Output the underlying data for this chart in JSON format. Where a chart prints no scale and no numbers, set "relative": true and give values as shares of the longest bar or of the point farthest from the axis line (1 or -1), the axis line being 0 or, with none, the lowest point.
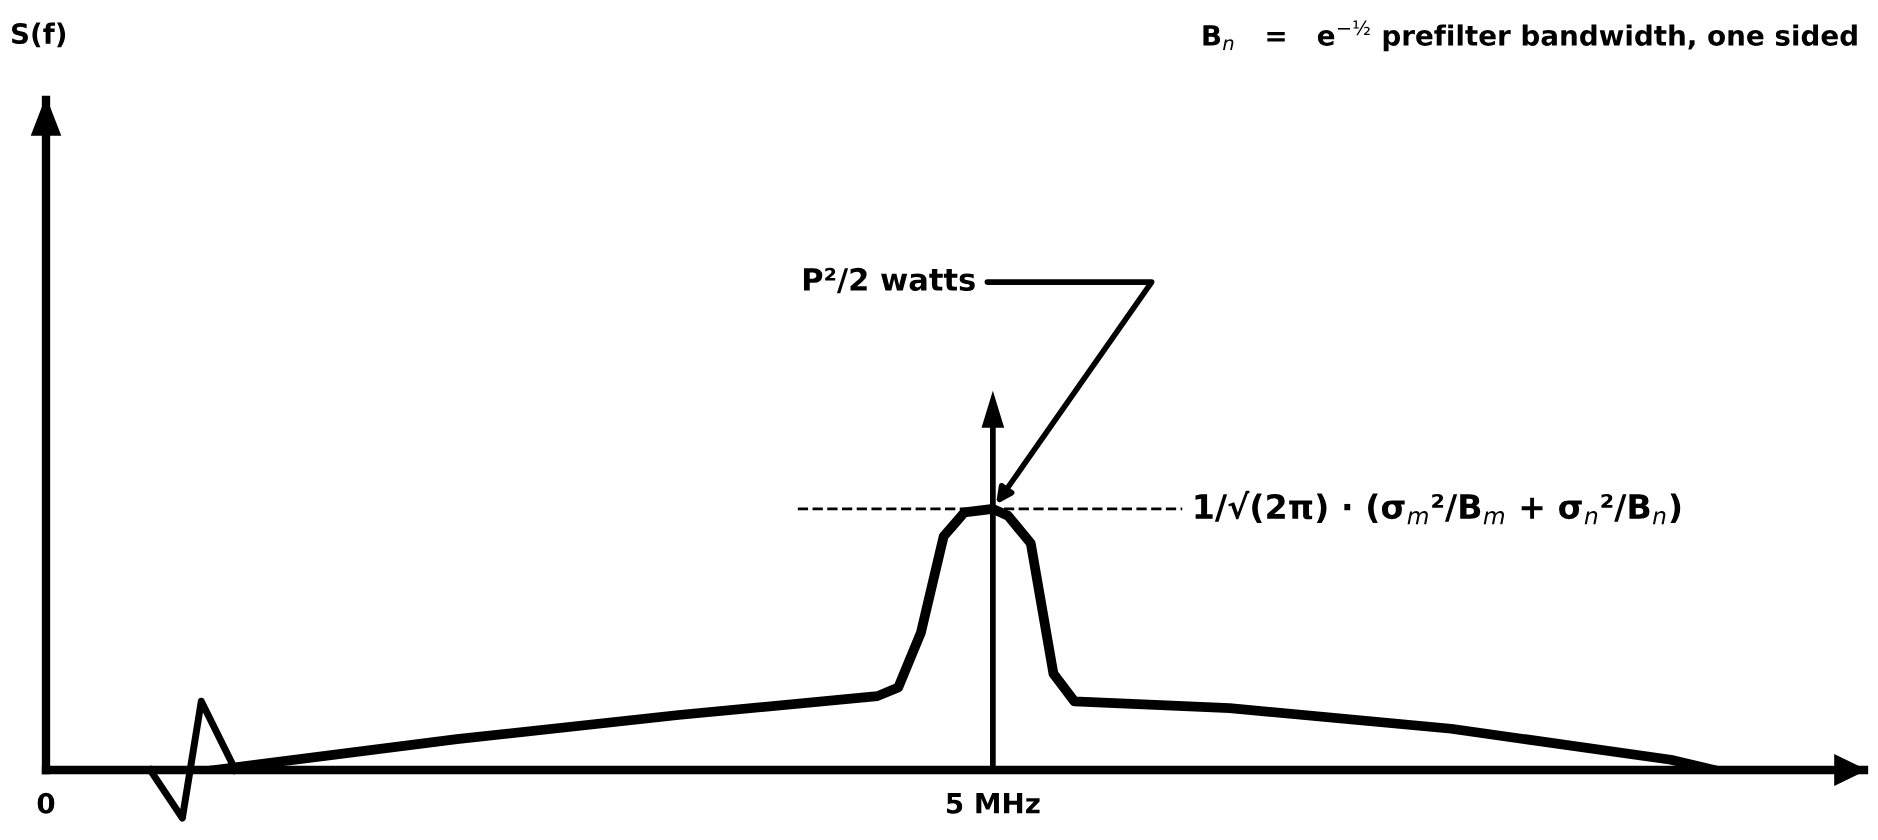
{
  "chart_data": {
    "type": "line",
    "relative": true,
    "xlim": [
      0,
      9.6
    ],
    "xticks": [
      {
        "value": 0,
        "label": "0"
      },
      {
        "value": 5,
        "label": "5 MHz"
      }
    ],
    "series": [
      {
        "color": "#000000",
        "x": [
          0.89,
          2.17,
          3.34,
          4.39,
          4.5,
          4.62,
          4.74,
          4.85,
          5.0,
          5.08,
          5.2,
          5.32,
          5.43,
          6.25,
          7.42,
          8.58,
          8.81
        ],
        "values": [
          0,
          0.09,
          0.16,
          0.215,
          0.24,
          0.4,
          0.68,
          0.75,
          0.76,
          0.74,
          0.66,
          0.28,
          0.2,
          0.18,
          0.12,
          0.03,
          0
        ]
      },
      {
        "type": "bar",
        "color": "#000000",
        "x": [
          5
        ],
        "values": [
          1
        ]
      }
    ],
    "ref_lines": [
      {
        "axis": "y",
        "value": 0.76,
        "label": "1/√(2π) · (σ$_{m}$²/B$_{m}$ + σ$_{n}$²/B$_{n}$)",
        "line_style": "dashed"
      }
    ],
    "annotations": [
      "S(f)",
      {
        "text": "P²/2 watts",
        "x": 5,
        "y": 0.76
      },
      "B$_{n}$   =   e$^{−½}$ prefilter bandwidth, one sided"
    ],
    "grid": false
  }
}
